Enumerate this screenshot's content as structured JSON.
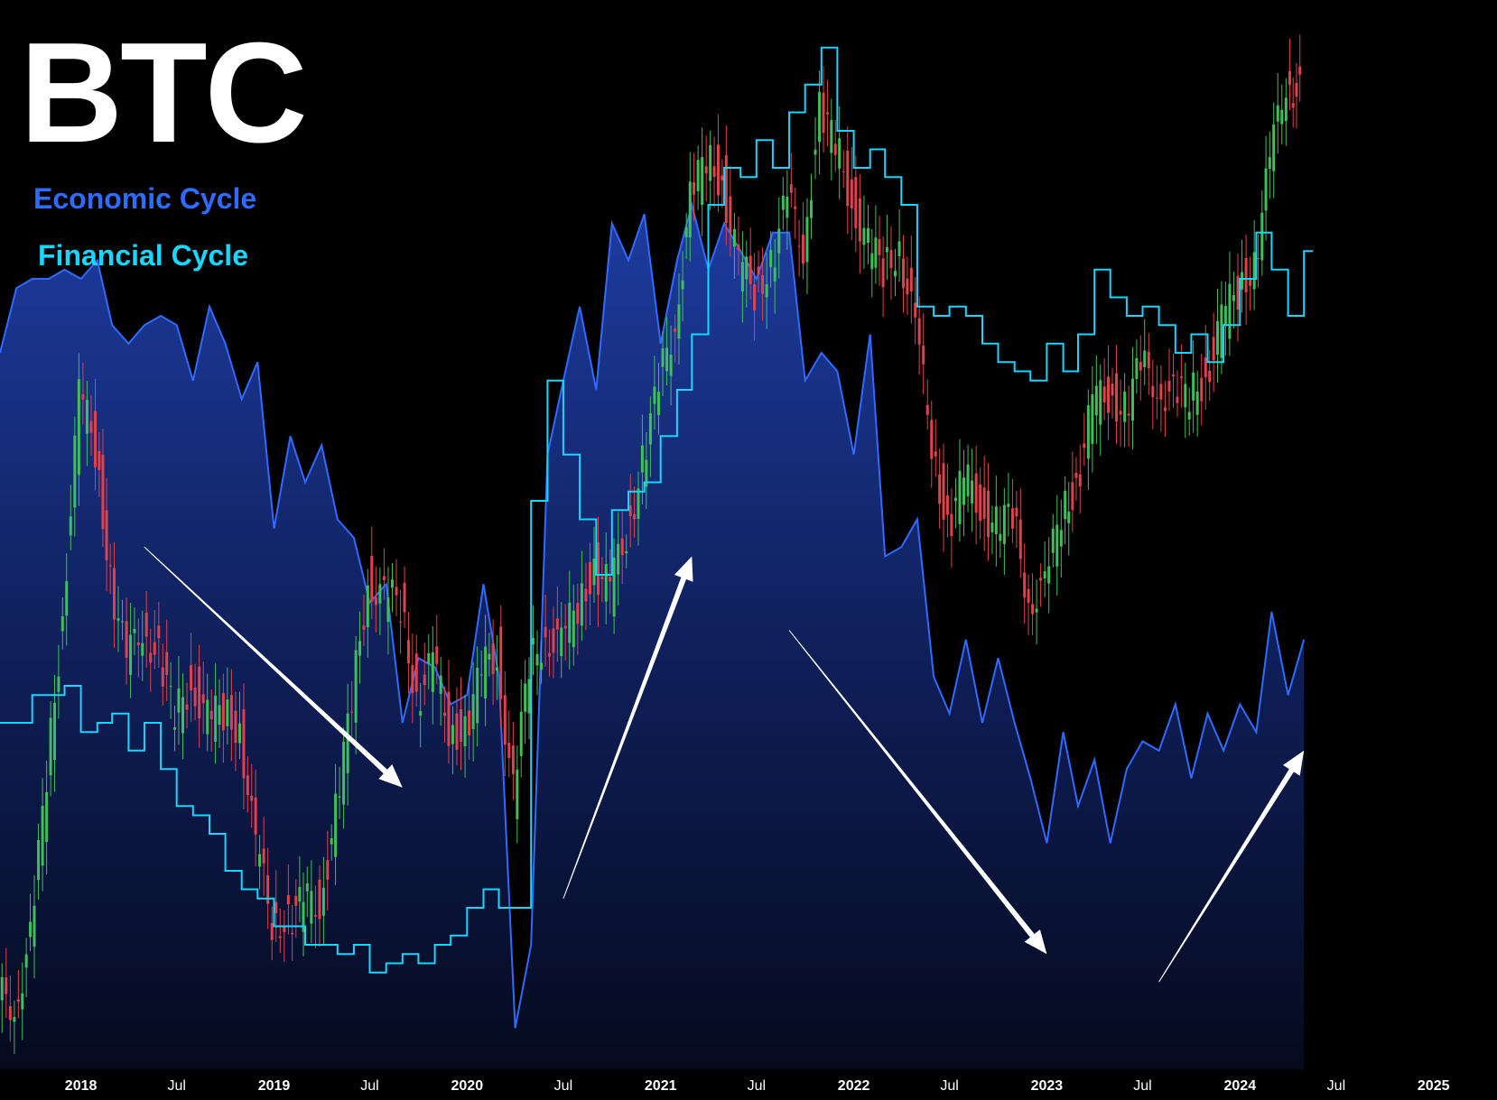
{
  "chart_data": {
    "type": "line",
    "title": "BTC",
    "legend": [
      {
        "name": "Economic Cycle",
        "color": "#2f6bff",
        "style": "area"
      },
      {
        "name": "Financial Cycle",
        "color": "#19d6ff",
        "style": "step-line"
      }
    ],
    "legend_position": "top-left",
    "grid": false,
    "x_axis": {
      "type": "date",
      "range": [
        "2017-08-01",
        "2025-05-01"
      ],
      "ticks": [
        {
          "date": "2018-01-01",
          "label": "2018",
          "year": true
        },
        {
          "date": "2018-07-01",
          "label": "Jul",
          "year": false
        },
        {
          "date": "2019-01-01",
          "label": "2019",
          "year": true
        },
        {
          "date": "2019-07-01",
          "label": "Jul",
          "year": false
        },
        {
          "date": "2020-01-01",
          "label": "2020",
          "year": true
        },
        {
          "date": "2020-07-01",
          "label": "Jul",
          "year": false
        },
        {
          "date": "2021-01-01",
          "label": "2021",
          "year": true
        },
        {
          "date": "2021-07-01",
          "label": "Jul",
          "year": false
        },
        {
          "date": "2022-01-01",
          "label": "2022",
          "year": true
        },
        {
          "date": "2022-07-01",
          "label": "Jul",
          "year": false
        },
        {
          "date": "2023-01-01",
          "label": "2023",
          "year": true
        },
        {
          "date": "2023-07-01",
          "label": "Jul",
          "year": false
        },
        {
          "date": "2024-01-01",
          "label": "2024",
          "year": true
        },
        {
          "date": "2024-07-01",
          "label": "Jul",
          "year": false
        },
        {
          "date": "2025-01-01",
          "label": "2025",
          "year": true
        }
      ]
    },
    "y_axis": {
      "visible": false,
      "range": [
        0,
        100
      ]
    },
    "economic_cycle": [
      [
        "2017-08-01",
        76
      ],
      [
        "2017-09-01",
        83
      ],
      [
        "2017-10-01",
        84
      ],
      [
        "2017-11-01",
        84
      ],
      [
        "2017-12-01",
        85
      ],
      [
        "2018-01-01",
        84
      ],
      [
        "2018-02-01",
        86
      ],
      [
        "2018-03-01",
        79
      ],
      [
        "2018-04-01",
        77
      ],
      [
        "2018-05-01",
        79
      ],
      [
        "2018-06-01",
        80
      ],
      [
        "2018-07-01",
        79
      ],
      [
        "2018-08-01",
        73
      ],
      [
        "2018-09-01",
        81
      ],
      [
        "2018-10-01",
        77
      ],
      [
        "2018-11-01",
        71
      ],
      [
        "2018-12-01",
        75
      ],
      [
        "2019-01-01",
        57
      ],
      [
        "2019-02-01",
        67
      ],
      [
        "2019-03-01",
        62
      ],
      [
        "2019-04-01",
        66
      ],
      [
        "2019-05-01",
        58
      ],
      [
        "2019-06-01",
        56
      ],
      [
        "2019-07-01",
        49
      ],
      [
        "2019-08-01",
        51
      ],
      [
        "2019-09-01",
        36
      ],
      [
        "2019-10-01",
        43
      ],
      [
        "2019-11-01",
        42
      ],
      [
        "2019-12-01",
        38
      ],
      [
        "2020-01-01",
        39
      ],
      [
        "2020-02-01",
        51
      ],
      [
        "2020-03-01",
        41
      ],
      [
        "2020-04-01",
        3
      ],
      [
        "2020-05-01",
        12
      ],
      [
        "2020-06-01",
        65
      ],
      [
        "2020-07-01",
        73
      ],
      [
        "2020-08-01",
        81
      ],
      [
        "2020-09-01",
        72
      ],
      [
        "2020-10-01",
        90
      ],
      [
        "2020-11-01",
        86
      ],
      [
        "2020-12-01",
        91
      ],
      [
        "2021-01-01",
        77
      ],
      [
        "2021-02-01",
        86
      ],
      [
        "2021-03-01",
        92
      ],
      [
        "2021-04-01",
        85
      ],
      [
        "2021-05-01",
        90
      ],
      [
        "2021-06-01",
        87
      ],
      [
        "2021-07-01",
        84
      ],
      [
        "2021-08-01",
        89
      ],
      [
        "2021-09-01",
        89
      ],
      [
        "2021-10-01",
        73
      ],
      [
        "2021-11-01",
        76
      ],
      [
        "2021-12-01",
        74
      ],
      [
        "2022-01-01",
        65
      ],
      [
        "2022-02-01",
        78
      ],
      [
        "2022-03-01",
        54
      ],
      [
        "2022-04-01",
        55
      ],
      [
        "2022-05-01",
        58
      ],
      [
        "2022-06-01",
        41
      ],
      [
        "2022-07-01",
        37
      ],
      [
        "2022-08-01",
        45
      ],
      [
        "2022-09-01",
        36
      ],
      [
        "2022-10-01",
        43
      ],
      [
        "2022-11-01",
        36
      ],
      [
        "2022-12-01",
        30
      ],
      [
        "2023-01-01",
        23
      ],
      [
        "2023-02-01",
        35
      ],
      [
        "2023-03-01",
        27
      ],
      [
        "2023-04-01",
        32
      ],
      [
        "2023-05-01",
        23
      ],
      [
        "2023-06-01",
        31
      ],
      [
        "2023-07-01",
        34
      ],
      [
        "2023-08-01",
        33
      ],
      [
        "2023-09-01",
        38
      ],
      [
        "2023-10-01",
        30
      ],
      [
        "2023-11-01",
        37
      ],
      [
        "2023-12-01",
        33
      ],
      [
        "2024-01-01",
        38
      ],
      [
        "2024-02-01",
        35
      ],
      [
        "2024-03-01",
        48
      ],
      [
        "2024-04-01",
        39
      ],
      [
        "2024-05-01",
        45
      ]
    ],
    "financial_cycle": [
      [
        "2017-08-01",
        36
      ],
      [
        "2017-10-01",
        39
      ],
      [
        "2017-12-01",
        40
      ],
      [
        "2018-01-01",
        35
      ],
      [
        "2018-02-01",
        36
      ],
      [
        "2018-03-01",
        37
      ],
      [
        "2018-04-01",
        33
      ],
      [
        "2018-05-01",
        36
      ],
      [
        "2018-06-01",
        31
      ],
      [
        "2018-07-01",
        27
      ],
      [
        "2018-08-01",
        26
      ],
      [
        "2018-09-01",
        24
      ],
      [
        "2018-10-01",
        20
      ],
      [
        "2018-11-01",
        18
      ],
      [
        "2018-12-01",
        17
      ],
      [
        "2019-01-01",
        14
      ],
      [
        "2019-02-01",
        14
      ],
      [
        "2019-03-01",
        12
      ],
      [
        "2019-04-01",
        12
      ],
      [
        "2019-05-01",
        11
      ],
      [
        "2019-06-01",
        12
      ],
      [
        "2019-07-01",
        9
      ],
      [
        "2019-08-01",
        10
      ],
      [
        "2019-09-01",
        11
      ],
      [
        "2019-10-01",
        10
      ],
      [
        "2019-11-01",
        12
      ],
      [
        "2019-12-01",
        13
      ],
      [
        "2020-01-01",
        16
      ],
      [
        "2020-02-01",
        18
      ],
      [
        "2020-03-01",
        16
      ],
      [
        "2020-04-01",
        16
      ],
      [
        "2020-05-01",
        60
      ],
      [
        "2020-06-01",
        73
      ],
      [
        "2020-07-01",
        65
      ],
      [
        "2020-08-01",
        58
      ],
      [
        "2020-09-01",
        52
      ],
      [
        "2020-10-01",
        59
      ],
      [
        "2020-11-01",
        61
      ],
      [
        "2020-12-01",
        62
      ],
      [
        "2021-01-01",
        67
      ],
      [
        "2021-02-01",
        72
      ],
      [
        "2021-03-01",
        78
      ],
      [
        "2021-04-01",
        92
      ],
      [
        "2021-05-01",
        96
      ],
      [
        "2021-06-01",
        95
      ],
      [
        "2021-07-01",
        99
      ],
      [
        "2021-08-01",
        96
      ],
      [
        "2021-09-01",
        102
      ],
      [
        "2021-10-01",
        105
      ],
      [
        "2021-11-01",
        109
      ],
      [
        "2021-12-01",
        100
      ],
      [
        "2022-01-01",
        96
      ],
      [
        "2022-02-01",
        98
      ],
      [
        "2022-03-01",
        95
      ],
      [
        "2022-04-01",
        92
      ],
      [
        "2022-05-01",
        81
      ],
      [
        "2022-06-01",
        80
      ],
      [
        "2022-07-01",
        81
      ],
      [
        "2022-08-01",
        80
      ],
      [
        "2022-09-01",
        77
      ],
      [
        "2022-10-01",
        75
      ],
      [
        "2022-11-01",
        74
      ],
      [
        "2022-12-01",
        73
      ],
      [
        "2023-01-01",
        77
      ],
      [
        "2023-02-01",
        74
      ],
      [
        "2023-03-01",
        78
      ],
      [
        "2023-04-01",
        85
      ],
      [
        "2023-05-01",
        82
      ],
      [
        "2023-06-01",
        80
      ],
      [
        "2023-07-01",
        81
      ],
      [
        "2023-08-01",
        79
      ],
      [
        "2023-09-01",
        76
      ],
      [
        "2023-10-01",
        78
      ],
      [
        "2023-11-01",
        75
      ],
      [
        "2023-12-01",
        79
      ],
      [
        "2024-01-01",
        84
      ],
      [
        "2024-02-01",
        89
      ],
      [
        "2024-03-01",
        85
      ],
      [
        "2024-04-01",
        80
      ],
      [
        "2024-05-01",
        87
      ]
    ],
    "btc_price_candles_close": [
      [
        "2017-08-01",
        6
      ],
      [
        "2017-09-01",
        12
      ],
      [
        "2017-10-01",
        30
      ],
      [
        "2017-11-01",
        48
      ],
      [
        "2017-12-01",
        71
      ],
      [
        "2018-01-01",
        66
      ],
      [
        "2018-02-01",
        52
      ],
      [
        "2018-03-01",
        42
      ],
      [
        "2018-04-01",
        47
      ],
      [
        "2018-05-01",
        43
      ],
      [
        "2018-06-01",
        36
      ],
      [
        "2018-07-01",
        41
      ],
      [
        "2018-08-01",
        36
      ],
      [
        "2018-09-01",
        37
      ],
      [
        "2018-10-01",
        36
      ],
      [
        "2018-11-01",
        22
      ],
      [
        "2018-12-01",
        15
      ],
      [
        "2019-01-01",
        15
      ],
      [
        "2019-02-01",
        16
      ],
      [
        "2019-03-01",
        17
      ],
      [
        "2019-04-01",
        26
      ],
      [
        "2019-05-01",
        38
      ],
      [
        "2019-06-01",
        52
      ],
      [
        "2019-07-01",
        49
      ],
      [
        "2019-08-01",
        49
      ],
      [
        "2019-09-01",
        39
      ],
      [
        "2019-10-01",
        42
      ],
      [
        "2019-11-01",
        36
      ],
      [
        "2019-12-01",
        35
      ],
      [
        "2020-01-01",
        41
      ],
      [
        "2020-02-01",
        44
      ],
      [
        "2020-03-01",
        28
      ],
      [
        "2020-04-01",
        42
      ],
      [
        "2020-05-01",
        46
      ],
      [
        "2020-06-01",
        44
      ],
      [
        "2020-07-01",
        49
      ],
      [
        "2020-08-01",
        53
      ],
      [
        "2020-09-01",
        50
      ],
      [
        "2020-10-01",
        57
      ],
      [
        "2020-11-01",
        64
      ],
      [
        "2020-12-01",
        72
      ],
      [
        "2021-01-01",
        80
      ],
      [
        "2021-02-01",
        92
      ],
      [
        "2021-03-01",
        97
      ],
      [
        "2021-04-01",
        95
      ],
      [
        "2021-05-01",
        85
      ],
      [
        "2021-06-01",
        83
      ],
      [
        "2021-07-01",
        86
      ],
      [
        "2021-08-01",
        92
      ],
      [
        "2021-09-01",
        88
      ],
      [
        "2021-10-01",
        102
      ],
      [
        "2021-11-01",
        98
      ],
      [
        "2021-12-01",
        93
      ],
      [
        "2022-01-01",
        87
      ],
      [
        "2022-02-01",
        85
      ],
      [
        "2022-03-01",
        88
      ],
      [
        "2022-04-01",
        78
      ],
      [
        "2022-05-01",
        67
      ],
      [
        "2022-06-01",
        57
      ],
      [
        "2022-07-01",
        62
      ],
      [
        "2022-08-01",
        60
      ],
      [
        "2022-09-01",
        57
      ],
      [
        "2022-10-01",
        58
      ],
      [
        "2022-11-01",
        50
      ],
      [
        "2022-12-01",
        50
      ],
      [
        "2023-01-01",
        59
      ],
      [
        "2023-02-01",
        62
      ],
      [
        "2023-03-01",
        70
      ],
      [
        "2023-04-01",
        72
      ],
      [
        "2023-05-01",
        70
      ],
      [
        "2023-06-01",
        74
      ],
      [
        "2023-07-01",
        73
      ],
      [
        "2023-08-01",
        71
      ],
      [
        "2023-09-01",
        71
      ],
      [
        "2023-10-01",
        74
      ],
      [
        "2023-11-01",
        79
      ],
      [
        "2023-12-01",
        83
      ],
      [
        "2024-01-01",
        86
      ],
      [
        "2024-02-01",
        96
      ],
      [
        "2024-03-01",
        106
      ],
      [
        "2024-04-01",
        104
      ]
    ],
    "annotations": [
      {
        "type": "arrow",
        "direction": "down",
        "from": [
          "2018-05-01",
          55
        ],
        "to": [
          "2019-09-01",
          29
        ]
      },
      {
        "type": "arrow",
        "direction": "up",
        "from": [
          "2020-07-01",
          17
        ],
        "to": [
          "2021-03-01",
          54
        ]
      },
      {
        "type": "arrow",
        "direction": "down",
        "from": [
          "2021-09-01",
          46
        ],
        "to": [
          "2023-01-01",
          11
        ]
      },
      {
        "type": "arrow",
        "direction": "up",
        "from": [
          "2023-08-01",
          8
        ],
        "to": [
          "2024-05-01",
          33
        ]
      }
    ]
  },
  "colors": {
    "background": "#000000",
    "economic": "#2f6bff",
    "financial": "#19d6ff",
    "candle_up": "#3fbf5a",
    "candle_down": "#e0414b",
    "arrow": "#ffffff"
  }
}
